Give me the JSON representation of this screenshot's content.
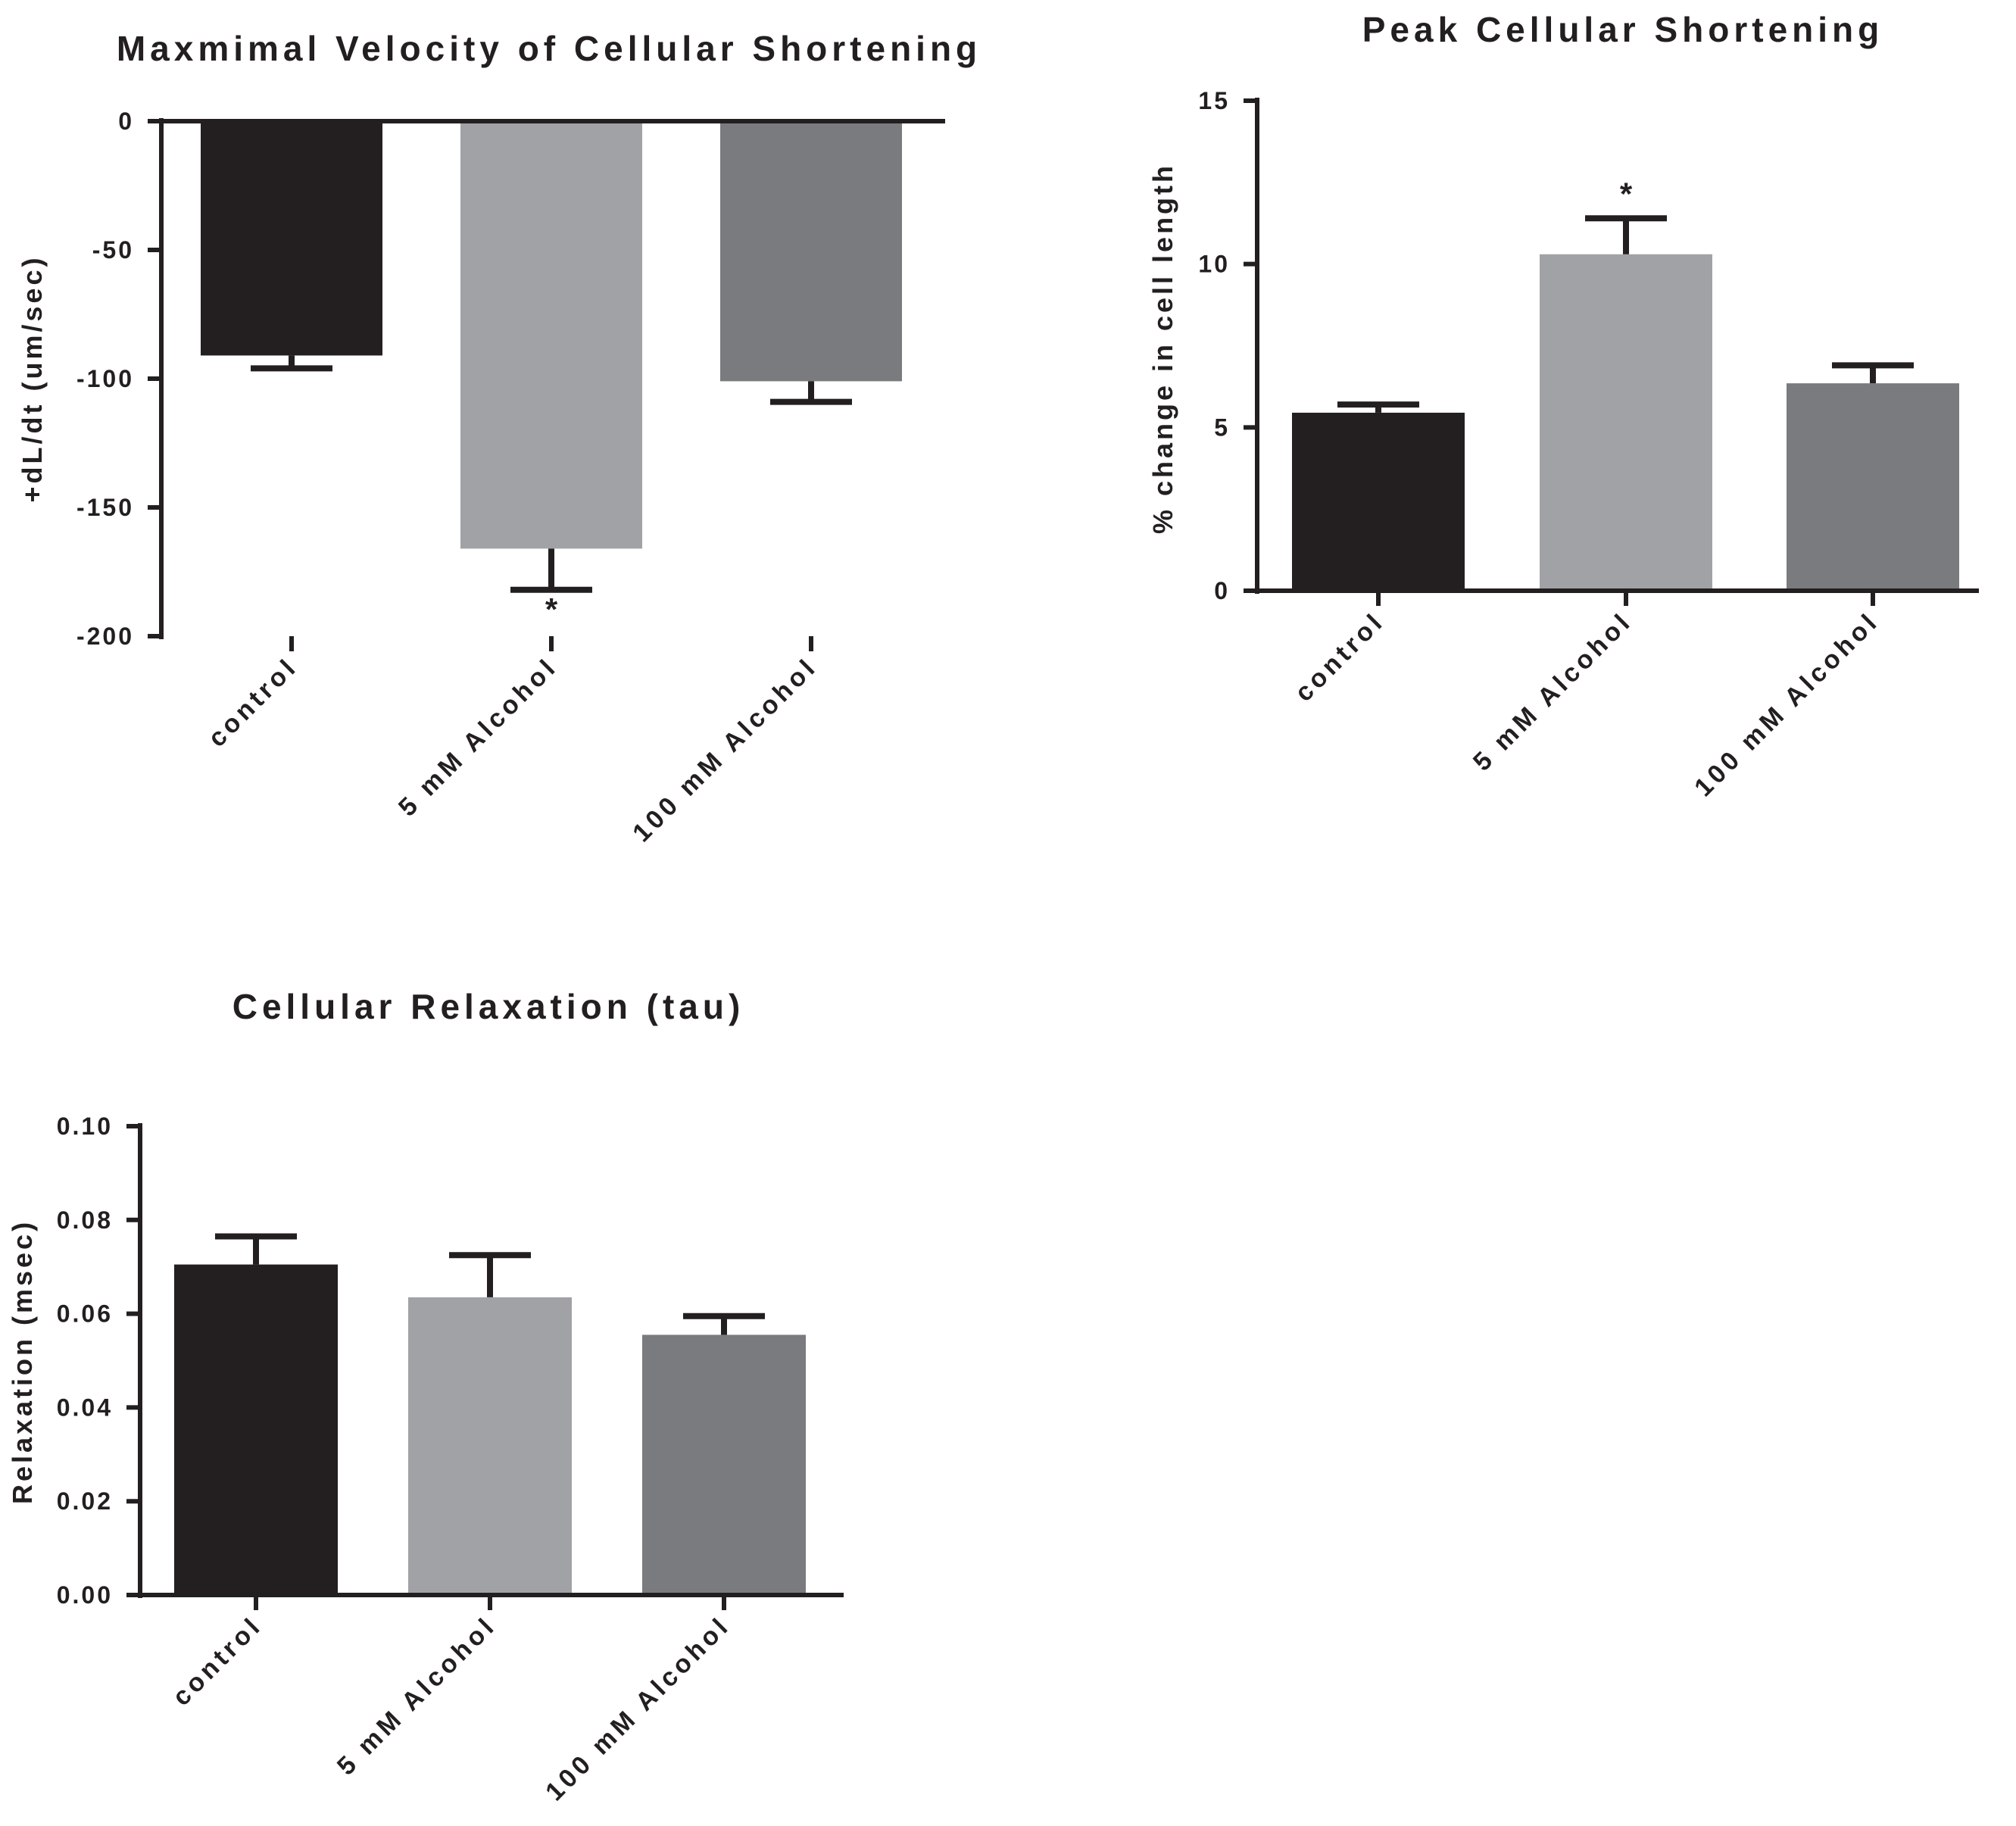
{
  "chart_data": [
    {
      "type": "bar",
      "title": "Maxmimal Velocity of Cellular Shortening",
      "xlabel": "",
      "ylabel": "+dL/dt (um/sec)",
      "categories": [
        "control",
        "5 mM Alcohol",
        "100 mM Alcohol"
      ],
      "values": [
        -91,
        -166,
        -101
      ],
      "errors": [
        5,
        16,
        8
      ],
      "colors": [
        "#231f20",
        "#a1a2a5",
        "#7a7b7e"
      ],
      "ylim": [
        -200,
        0
      ],
      "yticks": [
        0,
        -50,
        -100,
        -150,
        -200
      ],
      "ytick_labels": [
        "0",
        "-50",
        "-100",
        "-150",
        "-200"
      ],
      "annotations": [
        {
          "category": "5 mM Alcohol",
          "text": "*"
        }
      ],
      "grid": false,
      "legend": "none"
    },
    {
      "type": "bar",
      "title": "Peak Cellular Shortening",
      "xlabel": "",
      "ylabel": "% change in cell length",
      "categories": [
        "control",
        "5 mM Alcohol",
        "100 mM Alcohol"
      ],
      "values": [
        5.45,
        10.3,
        6.35
      ],
      "errors": [
        0.25,
        1.1,
        0.55
      ],
      "colors": [
        "#231f20",
        "#a1a2a5",
        "#7a7b7e"
      ],
      "ylim": [
        0,
        15
      ],
      "yticks": [
        0,
        5,
        10,
        15
      ],
      "ytick_labels": [
        "0",
        "5",
        "10",
        "15"
      ],
      "annotations": [
        {
          "category": "5 mM Alcohol",
          "text": "*"
        }
      ],
      "grid": false,
      "legend": "none"
    },
    {
      "type": "bar",
      "title": "Cellular Relaxation (tau)",
      "xlabel": "",
      "ylabel": "Relaxation (msec)",
      "categories": [
        "control",
        "5 mM Alcohol",
        "100 mM Alcohol"
      ],
      "values": [
        0.0705,
        0.0635,
        0.0555
      ],
      "errors": [
        0.006,
        0.009,
        0.004
      ],
      "colors": [
        "#231f20",
        "#a1a2a5",
        "#7a7b7e"
      ],
      "ylim": [
        0,
        0.1
      ],
      "yticks": [
        0,
        0.02,
        0.04,
        0.06,
        0.08,
        0.1
      ],
      "ytick_labels": [
        "0.00",
        "0.02",
        "0.04",
        "0.06",
        "0.08",
        "0.10"
      ],
      "annotations": [],
      "grid": false,
      "legend": "none"
    }
  ]
}
